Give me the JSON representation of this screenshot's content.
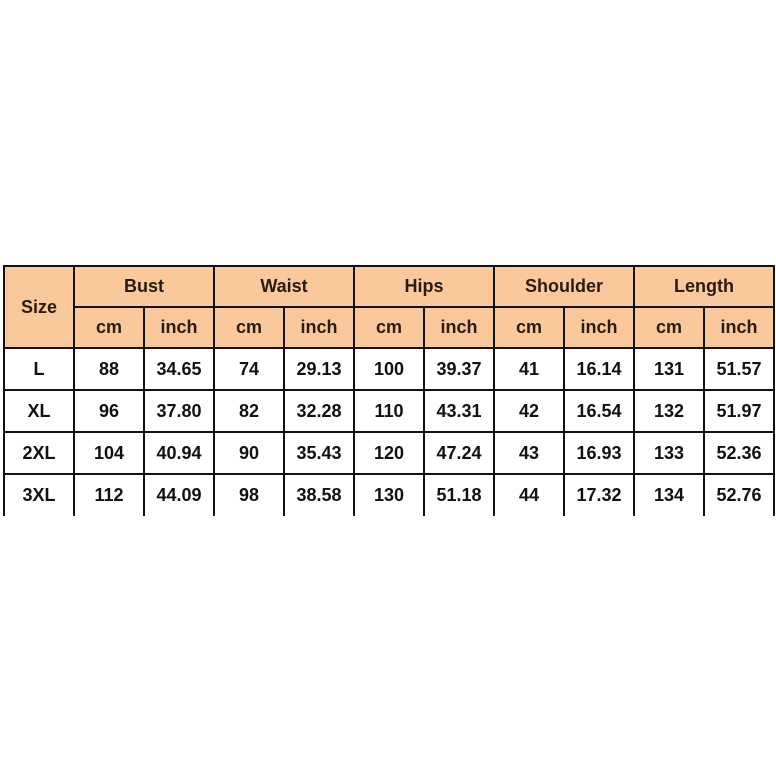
{
  "header": {
    "size_label": "Size",
    "groups": [
      "Bust",
      "Waist",
      "Hips",
      "Shoulder",
      "Length"
    ],
    "units": [
      "cm",
      "inch"
    ]
  },
  "header_color": "#FAC99B",
  "rows": [
    [
      "L",
      "88",
      "34.65",
      "74",
      "29.13",
      "100",
      "39.37",
      "41",
      "16.14",
      "131",
      "51.57"
    ],
    [
      "XL",
      "96",
      "37.80",
      "82",
      "32.28",
      "110",
      "43.31",
      "42",
      "16.54",
      "132",
      "51.97"
    ],
    [
      "2XL",
      "104",
      "40.94",
      "90",
      "35.43",
      "120",
      "47.24",
      "43",
      "16.93",
      "133",
      "52.36"
    ],
    [
      "3XL",
      "112",
      "44.09",
      "98",
      "38.58",
      "130",
      "51.18",
      "44",
      "17.32",
      "134",
      "52.76"
    ]
  ]
}
